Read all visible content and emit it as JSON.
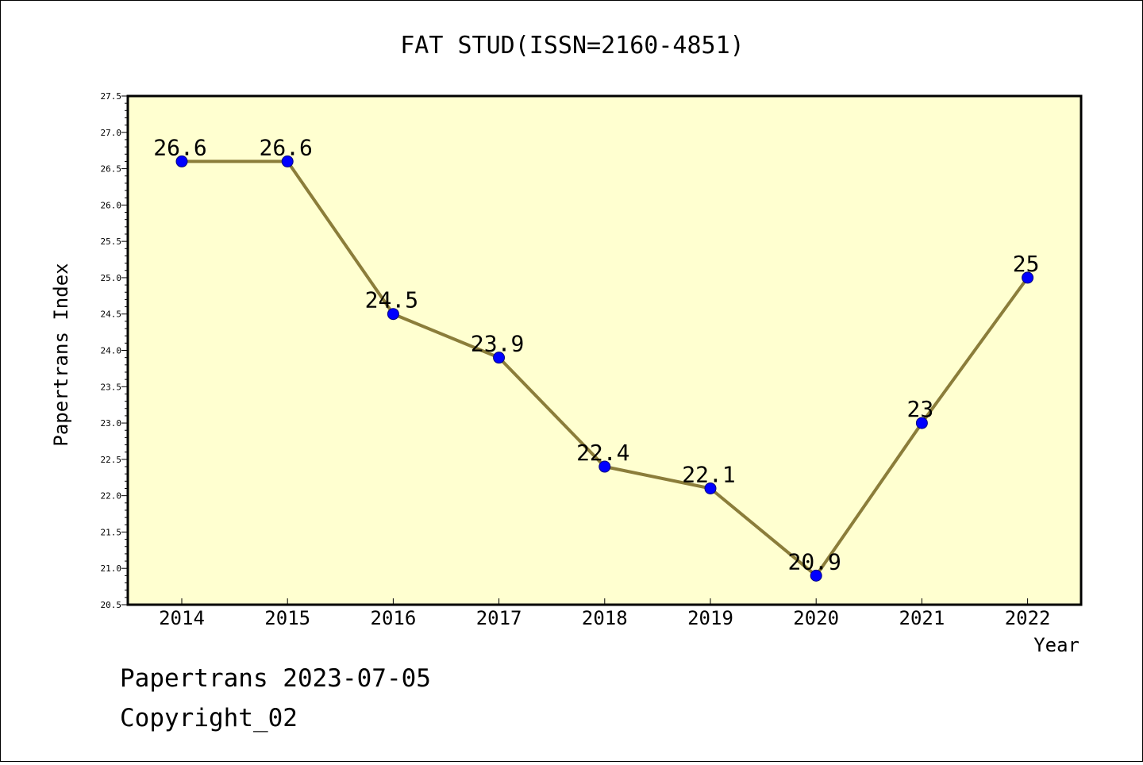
{
  "chart_data": {
    "type": "line",
    "title": "FAT STUD(ISSN=2160-4851)",
    "xlabel": "Year",
    "ylabel": "Papertrans Index",
    "categories": [
      "2014",
      "2015",
      "2016",
      "2017",
      "2018",
      "2019",
      "2020",
      "2021",
      "2022"
    ],
    "values": [
      26.6,
      26.6,
      24.5,
      23.9,
      22.4,
      22.1,
      20.9,
      23,
      25
    ],
    "data_labels": [
      "26.6",
      "26.6",
      "24.5",
      "23.9",
      "22.4",
      "22.1",
      "20.9",
      "23",
      "25"
    ],
    "ylim": [
      20.5,
      27.5
    ],
    "y_ticks": [
      "20.5",
      "21.0",
      "21.5",
      "22.0",
      "22.5",
      "23.0",
      "23.5",
      "24.0",
      "24.5",
      "25.0",
      "25.5",
      "26.0",
      "26.5",
      "27.0",
      "27.5"
    ],
    "grid": false,
    "legend": "none",
    "colors": {
      "plot_background": "#ffffd0",
      "line": "#8b7d3a",
      "marker": "#0000ff"
    }
  },
  "footer": {
    "date_line": "Papertrans 2023-07-05",
    "copyright_line": "Copyright_02"
  }
}
